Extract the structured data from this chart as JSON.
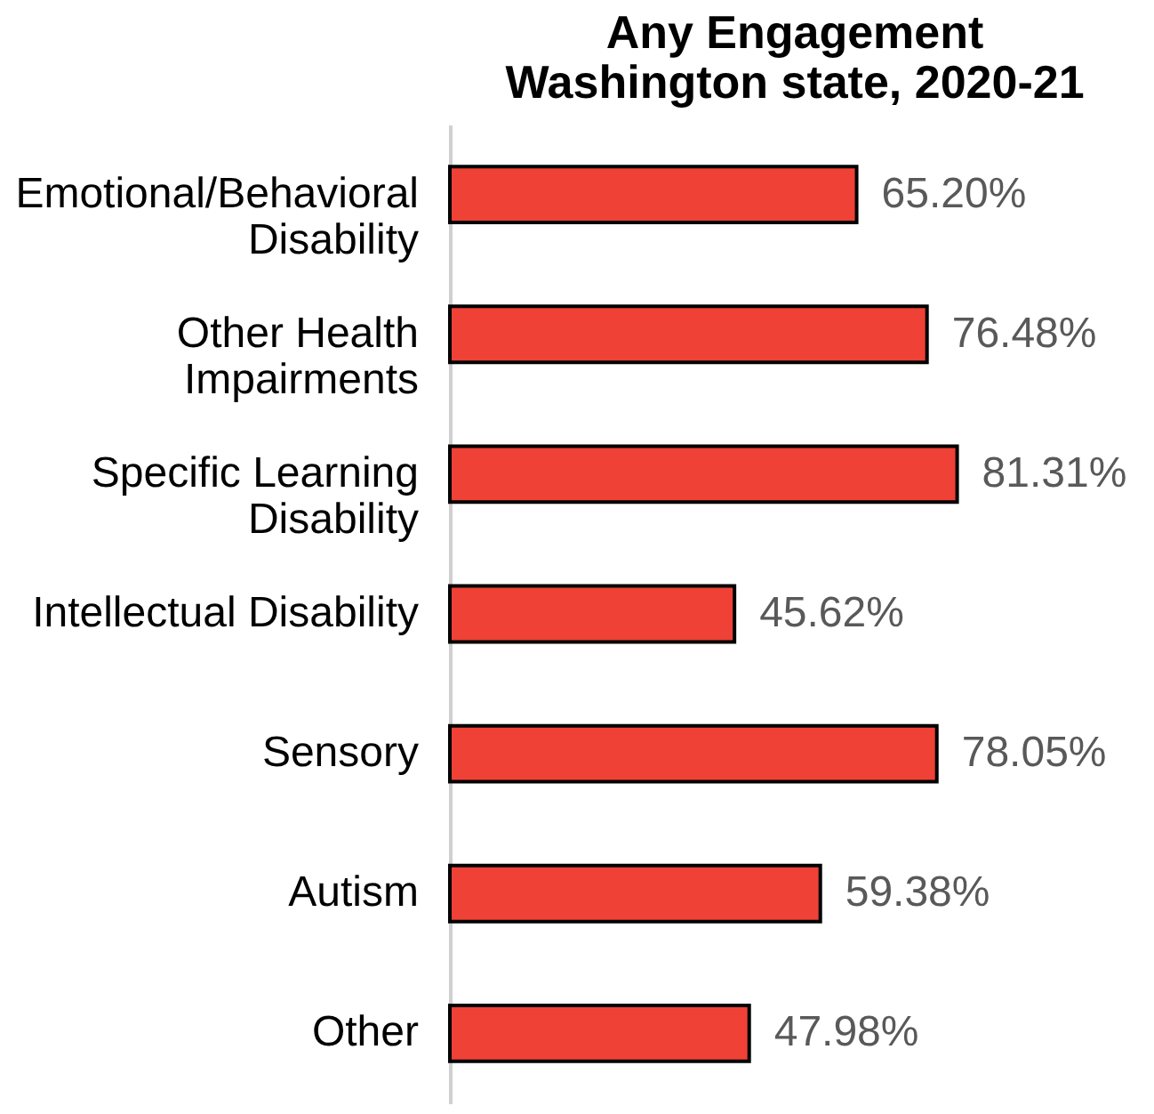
{
  "chart_data": {
    "type": "bar",
    "orientation": "horizontal",
    "title": "Any Engagement",
    "subtitle": "Washington state, 2020-21",
    "categories": [
      "Emotional/Behavioral Disability",
      "Other Health Impairments",
      "Specific Learning Disability",
      "Intellectual Disability",
      "Sensory",
      "Autism",
      "Other"
    ],
    "values": [
      65.2,
      76.48,
      81.31,
      45.62,
      78.05,
      59.38,
      47.98
    ],
    "value_labels": [
      "65.20%",
      "76.48%",
      "81.31%",
      "45.62%",
      "78.05%",
      "59.38%",
      "47.98%"
    ],
    "color": "#ef4136"
  }
}
